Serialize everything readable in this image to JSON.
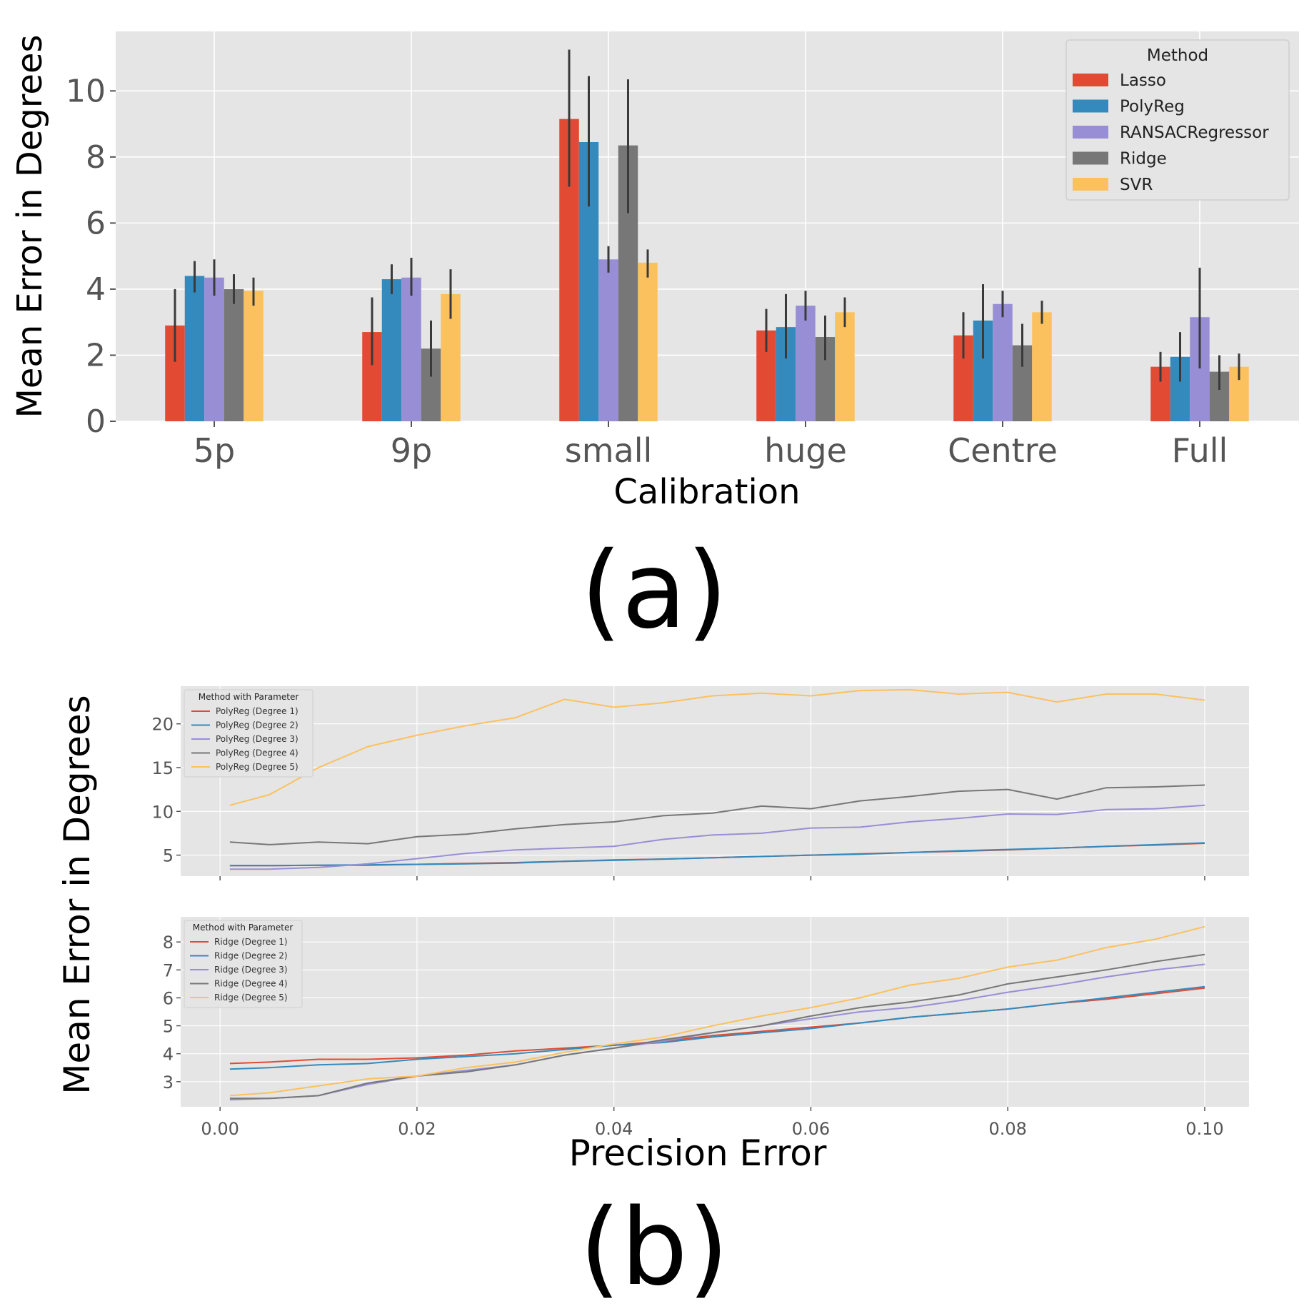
{
  "chart_data": [
    {
      "type": "bar",
      "panel_label": "(a)",
      "xlabel": "Calibration",
      "ylabel": "Mean Error in Degrees",
      "ylim": [
        0,
        11.8
      ],
      "yticks": [
        0,
        2,
        4,
        6,
        8,
        10
      ],
      "grid": true,
      "categories": [
        "5p",
        "9p",
        "small",
        "huge",
        "Centre",
        "Full"
      ],
      "legend": {
        "title": "Method",
        "placement": "top-right"
      },
      "series": [
        {
          "name": "Lasso",
          "color": "#E24A33",
          "values": [
            2.9,
            2.7,
            9.15,
            2.75,
            2.6,
            1.65
          ],
          "err_low": [
            1.8,
            1.7,
            7.1,
            2.1,
            1.9,
            1.2
          ],
          "err_high": [
            4.0,
            3.75,
            11.25,
            3.4,
            3.3,
            2.1
          ]
        },
        {
          "name": "PolyReg",
          "color": "#348ABD",
          "values": [
            4.4,
            4.3,
            8.45,
            2.85,
            3.05,
            1.95
          ],
          "err_low": [
            3.9,
            3.85,
            6.5,
            1.9,
            1.9,
            1.2
          ],
          "err_high": [
            4.85,
            4.75,
            10.45,
            3.85,
            4.15,
            2.7
          ]
        },
        {
          "name": "RANSACRegressor",
          "color": "#988ED5",
          "values": [
            4.35,
            4.35,
            4.9,
            3.5,
            3.55,
            3.15
          ],
          "err_low": [
            3.8,
            3.8,
            4.5,
            3.05,
            3.15,
            1.6
          ],
          "err_high": [
            4.9,
            4.95,
            5.3,
            3.95,
            3.95,
            4.65
          ]
        },
        {
          "name": "Ridge",
          "color": "#777777",
          "values": [
            4.0,
            2.2,
            8.35,
            2.55,
            2.3,
            1.5
          ],
          "err_low": [
            3.55,
            1.35,
            6.3,
            1.85,
            1.65,
            0.95
          ],
          "err_high": [
            4.45,
            3.05,
            10.35,
            3.2,
            2.95,
            2.0
          ]
        },
        {
          "name": "SVR",
          "color": "#FBC15E",
          "values": [
            3.95,
            3.85,
            4.8,
            3.3,
            3.3,
            1.65
          ],
          "err_low": [
            3.5,
            3.1,
            4.35,
            2.85,
            2.95,
            1.25
          ],
          "err_high": [
            4.35,
            4.6,
            5.2,
            3.75,
            3.65,
            2.05
          ]
        }
      ]
    },
    {
      "type": "line",
      "panel_label": "(b)",
      "subplot": "top",
      "xlabel": "Precision Error",
      "ylabel": "Mean Error in Degrees",
      "xlim": [
        -0.004,
        0.1045
      ],
      "ylim": [
        2.6,
        24.3
      ],
      "yticks": [
        5,
        10,
        15,
        20
      ],
      "grid": true,
      "legend": {
        "title": "Method with Parameter",
        "placement": "top-left"
      },
      "x": [
        0.001,
        0.005,
        0.01,
        0.015,
        0.02,
        0.025,
        0.03,
        0.035,
        0.04,
        0.045,
        0.05,
        0.055,
        0.06,
        0.065,
        0.07,
        0.075,
        0.08,
        0.085,
        0.09,
        0.095,
        0.1
      ],
      "series": [
        {
          "name": "PolyReg (Degree 1)",
          "color": "#E24A33",
          "values": [
            3.8,
            3.8,
            3.85,
            3.85,
            3.95,
            4.05,
            4.15,
            4.3,
            4.45,
            4.55,
            4.7,
            4.85,
            5.0,
            5.15,
            5.3,
            5.45,
            5.6,
            5.8,
            6.0,
            6.15,
            6.35
          ]
        },
        {
          "name": "PolyReg (Degree 2)",
          "color": "#348ABD",
          "values": [
            3.8,
            3.8,
            3.85,
            3.9,
            3.95,
            4.0,
            4.1,
            4.3,
            4.4,
            4.55,
            4.7,
            4.85,
            5.0,
            5.1,
            5.3,
            5.5,
            5.65,
            5.8,
            6.0,
            6.2,
            6.4
          ]
        },
        {
          "name": "PolyReg (Degree 3)",
          "color": "#988ED5",
          "values": [
            3.4,
            3.4,
            3.6,
            4.0,
            4.6,
            5.2,
            5.6,
            5.8,
            6.0,
            6.8,
            7.3,
            7.5,
            8.1,
            8.2,
            8.8,
            9.2,
            9.7,
            9.65,
            10.2,
            10.3,
            10.7
          ]
        },
        {
          "name": "PolyReg (Degree 4)",
          "color": "#777777",
          "values": [
            6.5,
            6.2,
            6.5,
            6.3,
            7.1,
            7.4,
            8.0,
            8.5,
            8.8,
            9.5,
            9.8,
            10.6,
            10.3,
            11.2,
            11.7,
            12.3,
            12.5,
            11.4,
            12.7,
            12.8,
            13.0
          ]
        },
        {
          "name": "PolyReg (Degree 5)",
          "color": "#FBC15E",
          "values": [
            10.7,
            11.9,
            15.0,
            17.4,
            18.7,
            19.8,
            20.7,
            22.8,
            21.9,
            22.4,
            23.2,
            23.5,
            23.2,
            23.8,
            23.9,
            23.4,
            23.6,
            22.5,
            23.4,
            23.4,
            22.7
          ]
        }
      ]
    },
    {
      "type": "line",
      "subplot": "bottom",
      "xlabel": "Precision Error",
      "ylabel": "Mean Error in Degrees",
      "xlim": [
        -0.004,
        0.1045
      ],
      "ylim": [
        2.1,
        8.9
      ],
      "xticks": [
        0.0,
        0.02,
        0.04,
        0.06,
        0.08,
        0.1
      ],
      "xtick_labels": [
        "0.00",
        "0.02",
        "0.04",
        "0.06",
        "0.08",
        "0.10"
      ],
      "yticks": [
        3,
        4,
        5,
        6,
        7,
        8
      ],
      "grid": true,
      "legend": {
        "title": "Method with Parameter",
        "placement": "top-left"
      },
      "x": [
        0.001,
        0.005,
        0.01,
        0.015,
        0.02,
        0.025,
        0.03,
        0.035,
        0.04,
        0.045,
        0.05,
        0.055,
        0.06,
        0.065,
        0.07,
        0.075,
        0.08,
        0.085,
        0.09,
        0.095,
        0.1
      ],
      "series": [
        {
          "name": "Ridge (Degree 1)",
          "color": "#E24A33",
          "values": [
            3.65,
            3.7,
            3.8,
            3.8,
            3.85,
            3.95,
            4.1,
            4.2,
            4.3,
            4.45,
            4.65,
            4.8,
            4.95,
            5.1,
            5.3,
            5.45,
            5.6,
            5.8,
            5.95,
            6.15,
            6.35
          ]
        },
        {
          "name": "Ridge (Degree 2)",
          "color": "#348ABD",
          "values": [
            3.45,
            3.5,
            3.6,
            3.65,
            3.8,
            3.9,
            4.0,
            4.15,
            4.3,
            4.4,
            4.6,
            4.75,
            4.9,
            5.1,
            5.3,
            5.45,
            5.6,
            5.8,
            6.0,
            6.2,
            6.4
          ]
        },
        {
          "name": "Ridge (Degree 3)",
          "color": "#988ED5",
          "values": [
            2.35,
            2.4,
            2.5,
            2.9,
            3.2,
            3.4,
            3.6,
            3.95,
            4.2,
            4.45,
            4.75,
            5.0,
            5.25,
            5.5,
            5.65,
            5.9,
            6.2,
            6.45,
            6.75,
            7.0,
            7.2
          ]
        },
        {
          "name": "Ridge (Degree 4)",
          "color": "#777777",
          "values": [
            2.4,
            2.4,
            2.5,
            2.95,
            3.2,
            3.35,
            3.6,
            3.95,
            4.2,
            4.5,
            4.75,
            5.0,
            5.35,
            5.65,
            5.85,
            6.1,
            6.5,
            6.75,
            7.0,
            7.3,
            7.55
          ]
        },
        {
          "name": "Ridge (Degree 5)",
          "color": "#FBC15E",
          "values": [
            2.5,
            2.6,
            2.85,
            3.1,
            3.2,
            3.5,
            3.7,
            4.05,
            4.35,
            4.6,
            5.0,
            5.35,
            5.65,
            6.0,
            6.45,
            6.7,
            7.1,
            7.35,
            7.8,
            8.1,
            8.55
          ]
        }
      ]
    }
  ]
}
